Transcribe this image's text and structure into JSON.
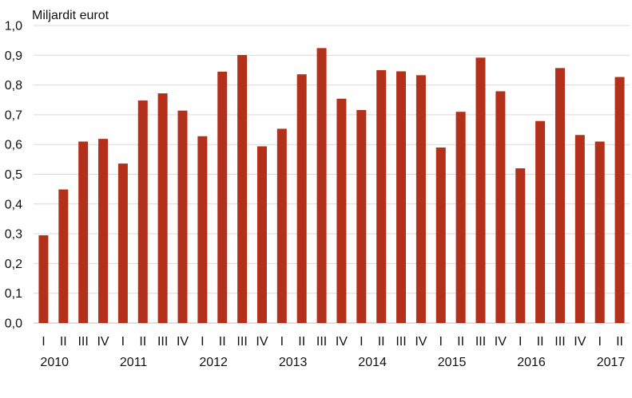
{
  "chart_data": {
    "type": "bar",
    "ylabel": "Miljardit eurot",
    "ylim": [
      0,
      1.0
    ],
    "y_ticks": [
      "0,0",
      "0,1",
      "0,2",
      "0,3",
      "0,4",
      "0,5",
      "0,6",
      "0,7",
      "0,8",
      "0,9",
      "1,0"
    ],
    "grid": true,
    "bar_color": "#b3311b",
    "categories": [
      "I",
      "II",
      "III",
      "IV",
      "I",
      "II",
      "III",
      "IV",
      "I",
      "II",
      "III",
      "IV",
      "I",
      "II",
      "III",
      "IV",
      "I",
      "II",
      "III",
      "IV",
      "I",
      "II",
      "III",
      "IV",
      "I",
      "II",
      "III",
      "IV",
      "I",
      "II"
    ],
    "years": [
      "2010",
      "2011",
      "2012",
      "2013",
      "2014",
      "2015",
      "2016",
      "2017"
    ],
    "series": [
      {
        "values": [
          0.295,
          0.449,
          0.61,
          0.619,
          0.536,
          0.748,
          0.772,
          0.714,
          0.628,
          0.845,
          0.901,
          0.594,
          0.653,
          0.836,
          0.924,
          0.754,
          0.716,
          0.85,
          0.846,
          0.833,
          0.59,
          0.71,
          0.892,
          0.779,
          0.52,
          0.679,
          0.857,
          0.632,
          0.61,
          0.827
        ]
      }
    ]
  }
}
